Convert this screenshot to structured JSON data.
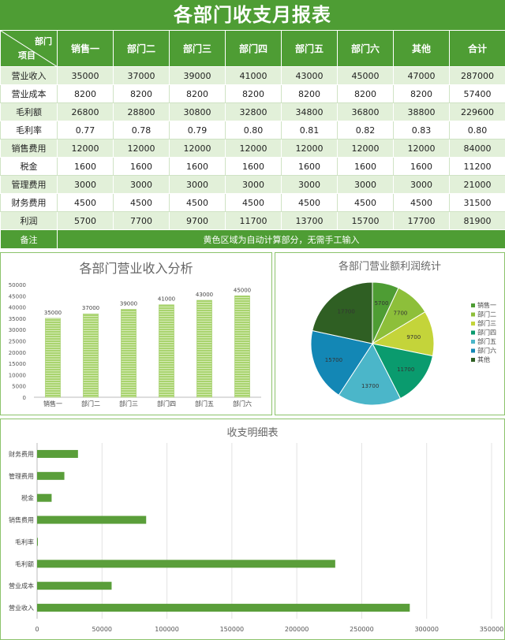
{
  "title": "各部门收支月报表",
  "table": {
    "corner_top": "部门",
    "corner_bottom": "项目",
    "columns": [
      "销售一",
      "部门二",
      "部门三",
      "部门四",
      "部门五",
      "部门六",
      "其他",
      "合计"
    ],
    "rows": [
      {
        "label": "营业收入",
        "values": [
          "35000",
          "37000",
          "39000",
          "41000",
          "43000",
          "45000",
          "47000",
          "287000"
        ]
      },
      {
        "label": "营业成本",
        "values": [
          "8200",
          "8200",
          "8200",
          "8200",
          "8200",
          "8200",
          "8200",
          "57400"
        ]
      },
      {
        "label": "毛利额",
        "values": [
          "26800",
          "28800",
          "30800",
          "32800",
          "34800",
          "36800",
          "38800",
          "229600"
        ]
      },
      {
        "label": "毛利率",
        "values": [
          "0.77",
          "0.78",
          "0.79",
          "0.80",
          "0.81",
          "0.82",
          "0.83",
          "0.80"
        ]
      },
      {
        "label": "销售费用",
        "values": [
          "12000",
          "12000",
          "12000",
          "12000",
          "12000",
          "12000",
          "12000",
          "84000"
        ]
      },
      {
        "label": "税金",
        "values": [
          "1600",
          "1600",
          "1600",
          "1600",
          "1600",
          "1600",
          "1600",
          "11200"
        ]
      },
      {
        "label": "管理费用",
        "values": [
          "3000",
          "3000",
          "3000",
          "3000",
          "3000",
          "3000",
          "3000",
          "21000"
        ]
      },
      {
        "label": "财务费用",
        "values": [
          "4500",
          "4500",
          "4500",
          "4500",
          "4500",
          "4500",
          "4500",
          "31500"
        ]
      },
      {
        "label": "利润",
        "values": [
          "5700",
          "7700",
          "9700",
          "11700",
          "13700",
          "15700",
          "17700",
          "81900"
        ]
      }
    ],
    "note_label": "备注",
    "note_text": "黄色区域为自动计算部分，无需手工输入"
  },
  "chart_data": [
    {
      "type": "bar",
      "title": "各部门营业收入分析",
      "categories": [
        "销售一",
        "部门二",
        "部门三",
        "部门四",
        "部门五",
        "部门六"
      ],
      "values": [
        35000,
        37000,
        39000,
        41000,
        43000,
        45000
      ],
      "ylim": [
        0,
        50000
      ],
      "yticks": [
        0,
        5000,
        10000,
        15000,
        20000,
        25000,
        30000,
        35000,
        40000,
        45000,
        50000
      ],
      "grid": false,
      "color": "#a9d46f"
    },
    {
      "type": "pie",
      "title": "各部门营业额利润统计",
      "categories": [
        "销售一",
        "部门二",
        "部门三",
        "部门四",
        "部门五",
        "部门六",
        "其他"
      ],
      "values": [
        5700,
        7700,
        9700,
        11700,
        13700,
        15700,
        17700
      ],
      "colors": [
        "#4e9d34",
        "#8dbf3a",
        "#c4d43a",
        "#0a9b6e",
        "#4bb6c9",
        "#1387b5",
        "#2f5f23"
      ],
      "legend": "right"
    },
    {
      "type": "bar",
      "orientation": "horizontal",
      "title": "收支明细表",
      "categories": [
        "营业收入",
        "营业成本",
        "毛利额",
        "毛利率",
        "销售费用",
        "税金",
        "管理费用",
        "财务费用"
      ],
      "values": [
        287000,
        57400,
        229600,
        0.8,
        84000,
        11200,
        21000,
        31500
      ],
      "xlim": [
        0,
        350000
      ],
      "xticks": [
        0,
        50000,
        100000,
        150000,
        200000,
        250000,
        300000,
        350000
      ],
      "grid": true,
      "color": "#5a9e3a"
    }
  ]
}
